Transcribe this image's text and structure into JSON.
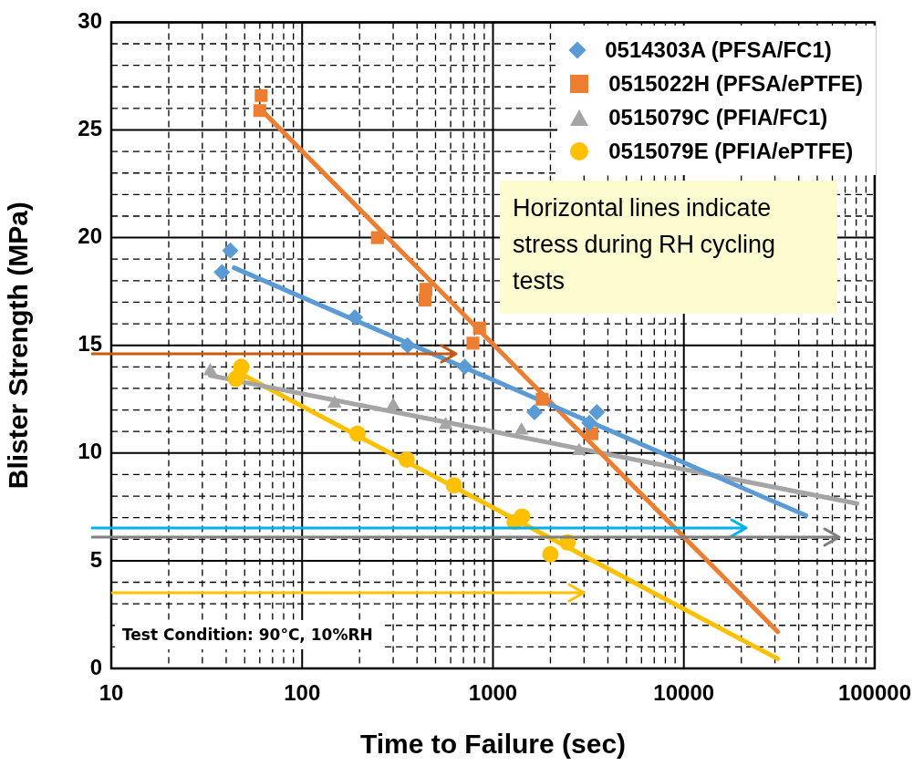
{
  "chart_data": {
    "type": "scatter",
    "xlabel": "Time to Failure (sec)",
    "ylabel": "Blister Strength (MPa)",
    "log": "x",
    "grid": true,
    "legend": "top right",
    "xlim": [
      10,
      100000
    ],
    "ylim": [
      0,
      30
    ],
    "xticks": [
      10,
      {
        "value": 20,
        "label": null
      },
      {
        "value": 30,
        "label": null
      },
      {
        "value": 40,
        "label": null
      },
      {
        "value": 50,
        "label": null
      },
      {
        "value": 60,
        "label": null
      },
      {
        "value": 70,
        "label": null
      },
      {
        "value": 80,
        "label": null
      },
      {
        "value": 90,
        "label": null
      },
      100,
      {
        "value": 200,
        "label": null
      },
      {
        "value": 300,
        "label": null
      },
      {
        "value": 400,
        "label": null
      },
      {
        "value": 500,
        "label": null
      },
      {
        "value": 600,
        "label": null
      },
      {
        "value": 700,
        "label": null
      },
      {
        "value": 800,
        "label": null
      },
      {
        "value": 900,
        "label": null
      },
      1000,
      {
        "value": 2000,
        "label": null
      },
      {
        "value": 3000,
        "label": null
      },
      {
        "value": 4000,
        "label": null
      },
      {
        "value": 5000,
        "label": null
      },
      {
        "value": 6000,
        "label": null
      },
      {
        "value": 7000,
        "label": null
      },
      {
        "value": 8000,
        "label": null
      },
      {
        "value": 9000,
        "label": null
      },
      10000,
      {
        "value": 20000,
        "label": null
      },
      {
        "value": 30000,
        "label": null
      },
      {
        "value": 40000,
        "label": null
      },
      {
        "value": 50000,
        "label": null
      },
      {
        "value": 60000,
        "label": null
      },
      {
        "value": 70000,
        "label": null
      },
      {
        "value": 80000,
        "label": null
      },
      {
        "value": 90000,
        "label": null
      },
      100000
    ],
    "yticks": [
      0,
      {
        "value": 1,
        "label": null
      },
      {
        "value": 2,
        "label": null
      },
      {
        "value": 3,
        "label": null
      },
      {
        "value": 4,
        "label": null
      },
      5,
      {
        "value": 6,
        "label": null
      },
      {
        "value": 7,
        "label": null
      },
      {
        "value": 8,
        "label": null
      },
      {
        "value": 9,
        "label": null
      },
      10,
      {
        "value": 11,
        "label": null
      },
      {
        "value": 12,
        "label": null
      },
      {
        "value": 13,
        "label": null
      },
      {
        "value": 14,
        "label": null
      },
      15,
      {
        "value": 16,
        "label": null
      },
      {
        "value": 17,
        "label": null
      },
      {
        "value": 18,
        "label": null
      },
      {
        "value": 19,
        "label": null
      },
      20,
      {
        "value": 21,
        "label": null
      },
      {
        "value": 22,
        "label": null
      },
      {
        "value": 23,
        "label": null
      },
      {
        "value": 24,
        "label": null
      },
      25,
      {
        "value": 26,
        "label": null
      },
      {
        "value": 27,
        "label": null
      },
      {
        "value": 28,
        "label": null
      },
      {
        "value": 29,
        "label": null
      },
      30
    ],
    "ref_lines": [
      {
        "axis": "y",
        "value": 14.6,
        "color": "#c55a11"
      },
      {
        "axis": "y",
        "value": 6.5,
        "color": "#00b0f0"
      },
      {
        "axis": "y",
        "value": 6.1,
        "color": "#7f7f7f"
      },
      {
        "axis": "y",
        "value": 3.5,
        "color": "#ffc000"
      }
    ],
    "annotations": [
      "Horizontal lines indicate stress during RH cycling tests",
      "Test Condition: 90°C, 10%RH"
    ],
    "series": [
      {
        "name": "0514303A (PFSA/FC1)",
        "marker": "diamond",
        "color": "#5b9bd5",
        "x": [
          42,
          38,
          189,
          357,
          711,
          1650,
          3500,
          3200
        ],
        "values": [
          19.4,
          18.4,
          16.3,
          15.0,
          14.0,
          11.9,
          11.9,
          11.4
        ]
      },
      {
        "name": "0515022H (PFSA/ePTFE)",
        "marker": "square",
        "color": "#ed7d31",
        "x": [
          61,
          60,
          248,
          445,
          440,
          850,
          785,
          1810,
          3300
        ],
        "values": [
          26.6,
          25.9,
          20.0,
          17.6,
          17.1,
          15.8,
          15.1,
          12.5,
          10.9
        ]
      },
      {
        "name": "0515079C (PFIA/FC1)",
        "marker": "triangle",
        "color": "#a5a5a5",
        "x": [
          33,
          148,
          300,
          565,
          1410,
          2830
        ],
        "values": [
          13.8,
          12.3,
          12.2,
          11.3,
          11.05,
          10.1
        ]
      },
      {
        "name": "0515079E (PFIA/ePTFE)",
        "marker": "circle",
        "color": "#ffc000",
        "x": [
          48,
          45,
          195,
          353,
          624,
          1420,
          1300,
          2460,
          2000
        ],
        "values": [
          14.0,
          13.45,
          10.9,
          9.7,
          8.5,
          7.05,
          6.8,
          5.85,
          5.3
        ]
      },
      {
        "type": "line",
        "marker": "none",
        "color": "#5b9bd5",
        "x": [
          44,
          43600
        ],
        "values": [
          18.6,
          7.1
        ]
      },
      {
        "type": "line",
        "marker": "none",
        "color": "#ed7d31",
        "x": [
          60,
          31000
        ],
        "values": [
          26.0,
          1.7
        ]
      },
      {
        "type": "line",
        "marker": "none",
        "color": "#a5a5a5",
        "x": [
          33,
          81000
        ],
        "values": [
          13.6,
          7.65
        ]
      },
      {
        "type": "line",
        "marker": "none",
        "color": "#ffc000",
        "x": [
          45,
          31000
        ],
        "values": [
          13.8,
          0.45
        ]
      }
    ]
  }
}
